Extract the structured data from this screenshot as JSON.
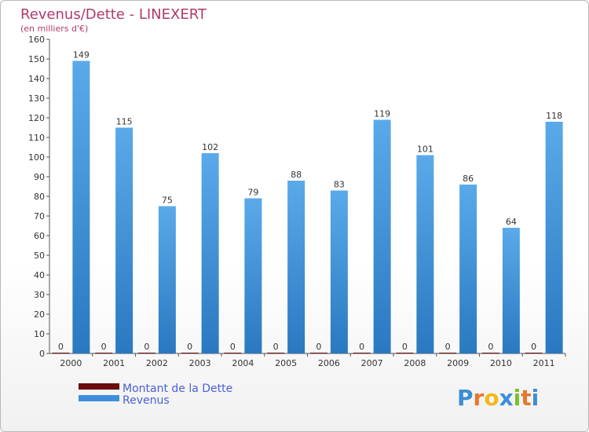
{
  "chart_data": {
    "type": "bar",
    "title": "Revenus/Dette - LINEXERT",
    "subtitle": "(en milliers d'€)",
    "categories": [
      "2000",
      "2001",
      "2002",
      "2003",
      "2004",
      "2005",
      "2006",
      "2007",
      "2008",
      "2009",
      "2010",
      "2011"
    ],
    "series": [
      {
        "name": "Montant de la Dette",
        "color": "#6b0d0d",
        "values": [
          0,
          0,
          0,
          0,
          0,
          0,
          0,
          0,
          0,
          0,
          0,
          0
        ]
      },
      {
        "name": "Revenus",
        "color": "#3d8fdd",
        "values": [
          149,
          115,
          75,
          102,
          79,
          88,
          83,
          119,
          101,
          86,
          64,
          118
        ]
      }
    ],
    "ylim": [
      0,
      160
    ],
    "yticks": [
      0,
      10,
      20,
      30,
      40,
      50,
      60,
      70,
      80,
      90,
      100,
      110,
      120,
      130,
      140,
      150,
      160
    ],
    "grid": false,
    "legend_position": "bottom-left"
  },
  "logo": {
    "text": "Proxiti",
    "letter_colors": [
      "#3b8ed6",
      "#e8762c",
      "#f2b81c",
      "#3b8ed6",
      "#7bbf2b",
      "#e8762c",
      "#3b8ed6"
    ]
  }
}
